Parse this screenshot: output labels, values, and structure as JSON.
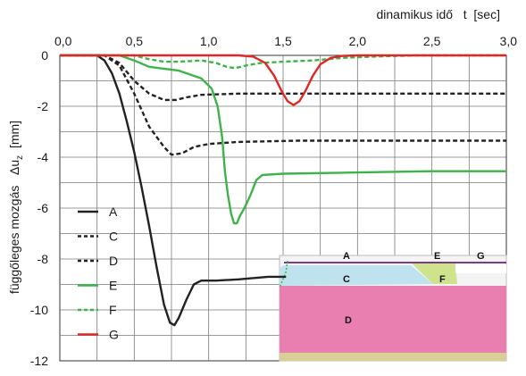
{
  "chart_data": {
    "type": "line",
    "xlabel": "dinamikus idő   t  [sec]",
    "ylabel": "függőleges mozgás   Δu",
    "ylabel_sub": "z",
    "ylabel_unit": "  [mm]",
    "xlim": [
      0,
      3.0
    ],
    "ylim": [
      -12,
      0
    ],
    "x_ticks": [
      "0,0",
      "0,5",
      "1,0",
      "1,5",
      "2,0",
      "2,5",
      "3,0"
    ],
    "y_ticks": [
      "0",
      "-2",
      "-4",
      "-6",
      "-8",
      "-10",
      "-12"
    ],
    "grid": true,
    "x_axis_position": "top",
    "legend_position": "bottom-left",
    "series": [
      {
        "name": "A",
        "color": "#222222",
        "dash": "solid",
        "points": [
          [
            0,
            0
          ],
          [
            0.25,
            0
          ],
          [
            0.3,
            -0.2
          ],
          [
            0.35,
            -0.7
          ],
          [
            0.4,
            -1.5
          ],
          [
            0.45,
            -2.6
          ],
          [
            0.5,
            -3.8
          ],
          [
            0.55,
            -5.2
          ],
          [
            0.6,
            -6.7
          ],
          [
            0.65,
            -8.3
          ],
          [
            0.7,
            -9.8
          ],
          [
            0.74,
            -10.5
          ],
          [
            0.77,
            -10.6
          ],
          [
            0.8,
            -10.3
          ],
          [
            0.85,
            -9.6
          ],
          [
            0.9,
            -9.0
          ],
          [
            0.95,
            -8.85
          ],
          [
            1.05,
            -8.85
          ],
          [
            1.2,
            -8.8
          ],
          [
            1.4,
            -8.7
          ],
          [
            1.52,
            -8.7
          ]
        ]
      },
      {
        "name": "C",
        "color": "#222222",
        "dash": "dashed",
        "points": [
          [
            0,
            0
          ],
          [
            0.3,
            0
          ],
          [
            0.4,
            -0.4
          ],
          [
            0.5,
            -1.5
          ],
          [
            0.6,
            -2.8
          ],
          [
            0.7,
            -3.6
          ],
          [
            0.75,
            -3.9
          ],
          [
            0.82,
            -3.85
          ],
          [
            0.9,
            -3.6
          ],
          [
            1.0,
            -3.48
          ],
          [
            1.2,
            -3.4
          ],
          [
            1.6,
            -3.35
          ],
          [
            2.0,
            -3.35
          ],
          [
            2.5,
            -3.35
          ],
          [
            3.0,
            -3.35
          ]
        ]
      },
      {
        "name": "D",
        "color": "#222222",
        "dash": "dashed",
        "points": [
          [
            0,
            0
          ],
          [
            0.3,
            0
          ],
          [
            0.4,
            -0.3
          ],
          [
            0.5,
            -1.0
          ],
          [
            0.6,
            -1.5
          ],
          [
            0.7,
            -1.75
          ],
          [
            0.78,
            -1.75
          ],
          [
            0.85,
            -1.65
          ],
          [
            0.95,
            -1.55
          ],
          [
            1.2,
            -1.5
          ],
          [
            1.6,
            -1.5
          ],
          [
            2.0,
            -1.5
          ],
          [
            2.5,
            -1.5
          ],
          [
            3.0,
            -1.5
          ]
        ]
      },
      {
        "name": "E",
        "color": "#3db34a",
        "dash": "solid",
        "points": [
          [
            0,
            0
          ],
          [
            0.4,
            0
          ],
          [
            0.5,
            -0.2
          ],
          [
            0.6,
            -0.45
          ],
          [
            0.8,
            -0.6
          ],
          [
            0.95,
            -0.9
          ],
          [
            1.02,
            -1.3
          ],
          [
            1.06,
            -2.0
          ],
          [
            1.09,
            -3.2
          ],
          [
            1.11,
            -4.6
          ],
          [
            1.13,
            -5.5
          ],
          [
            1.15,
            -6.2
          ],
          [
            1.17,
            -6.6
          ],
          [
            1.19,
            -6.6
          ],
          [
            1.21,
            -6.3
          ],
          [
            1.24,
            -6.0
          ],
          [
            1.28,
            -5.5
          ],
          [
            1.32,
            -4.9
          ],
          [
            1.36,
            -4.7
          ],
          [
            1.5,
            -4.65
          ],
          [
            2.0,
            -4.6
          ],
          [
            2.5,
            -4.55
          ],
          [
            3.0,
            -4.55
          ]
        ]
      },
      {
        "name": "F",
        "color": "#3db34a",
        "dash": "dashed",
        "points": [
          [
            0,
            0
          ],
          [
            0.5,
            0
          ],
          [
            0.6,
            -0.15
          ],
          [
            0.7,
            -0.25
          ],
          [
            0.8,
            -0.25
          ],
          [
            0.95,
            -0.2
          ],
          [
            1.05,
            -0.3
          ],
          [
            1.12,
            -0.45
          ],
          [
            1.18,
            -0.5
          ],
          [
            1.25,
            -0.4
          ],
          [
            1.35,
            -0.3
          ],
          [
            1.5,
            -0.25
          ],
          [
            1.7,
            -0.2
          ],
          [
            1.9,
            -0.1
          ],
          [
            2.1,
            -0.05
          ],
          [
            2.4,
            0
          ],
          [
            3.0,
            0
          ]
        ]
      },
      {
        "name": "G",
        "color": "#e02626",
        "dash": "solid",
        "points": [
          [
            0,
            0
          ],
          [
            1.2,
            0
          ],
          [
            1.3,
            -0.05
          ],
          [
            1.38,
            -0.3
          ],
          [
            1.44,
            -0.8
          ],
          [
            1.49,
            -1.4
          ],
          [
            1.53,
            -1.8
          ],
          [
            1.57,
            -1.95
          ],
          [
            1.61,
            -1.8
          ],
          [
            1.65,
            -1.4
          ],
          [
            1.7,
            -0.8
          ],
          [
            1.75,
            -0.35
          ],
          [
            1.82,
            -0.1
          ],
          [
            1.9,
            -0.02
          ],
          [
            2.0,
            0
          ],
          [
            3.0,
            0
          ]
        ]
      }
    ]
  },
  "inset": {
    "labels": [
      "A",
      "E",
      "G",
      "C",
      "F",
      "D"
    ],
    "colors": {
      "c_layer": "#bfe3ee",
      "d_layer": "#e87fb0",
      "e_wedge": "#cfe28c",
      "base": "#d8cf94",
      "frame": "#808080",
      "surface": "#7a3d8a",
      "edge_green": "#3db34a"
    }
  }
}
